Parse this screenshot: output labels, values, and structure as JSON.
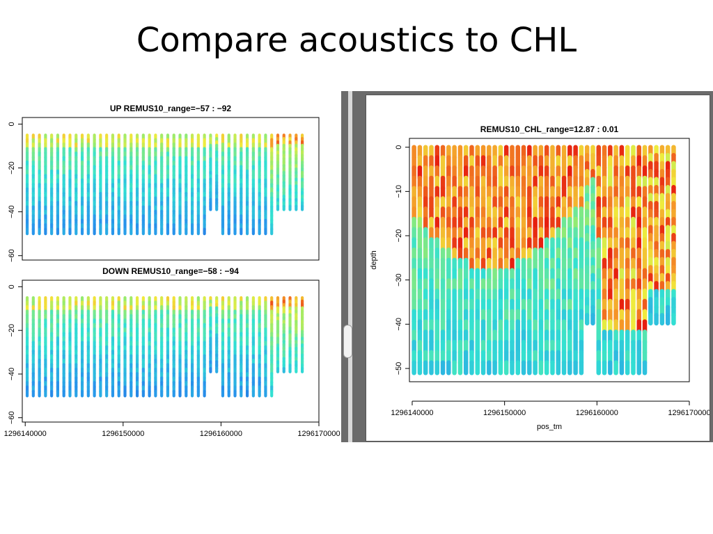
{
  "slide": {
    "title": "Compare acoustics to CHL"
  },
  "colors": {
    "low": "#1f4fd8",
    "mid": "#2fe0c8",
    "high": "#e82010",
    "frame": "#6b6b6b"
  },
  "chart_data": [
    {
      "type": "scatter",
      "title": "UP REMUS10_range=−57 : −92",
      "xlabel": "",
      "ylabel": "",
      "yticks": [
        "0",
        "−20",
        "−40",
        "−60"
      ],
      "ytick_values": [
        0,
        -20,
        -40,
        -60
      ],
      "ylim": [
        -62,
        3
      ],
      "x_shared_with_down_panel": true,
      "color_range": [
        -57,
        -92
      ],
      "dives": 46,
      "depth_min": -5,
      "depth_max": -50
    },
    {
      "type": "scatter",
      "title": "DOWN REMUS10_range=−58 : −94",
      "xlabel": "",
      "ylabel": "",
      "xticks": [
        "1296140000",
        "1296150000",
        "1296160000",
        "1296170000"
      ],
      "xtick_values": [
        1296140000,
        1296150000,
        1296160000,
        1296170000
      ],
      "xlim": [
        1296139700,
        1296170000
      ],
      "yticks": [
        "0",
        "−20",
        "−40",
        "−60"
      ],
      "ytick_values": [
        0,
        -20,
        -40,
        -60
      ],
      "ylim": [
        -62,
        3
      ],
      "color_range": [
        -58,
        -94
      ],
      "dives": 46,
      "depth_min": -5,
      "depth_max": -50
    },
    {
      "type": "scatter",
      "title": "REMUS10_CHL_range=12.87 : 0.01",
      "xlabel": "pos_tm",
      "ylabel": "depth",
      "xticks": [
        "1296140000",
        "1296150000",
        "1296160000",
        "1296170000"
      ],
      "xtick_values": [
        1296140000,
        1296150000,
        1296160000,
        1296170000
      ],
      "xlim": [
        1296139700,
        1296170000
      ],
      "yticks": [
        "0",
        "−10",
        "−20",
        "−30",
        "−40",
        "−50"
      ],
      "ytick_values": [
        0,
        -10,
        -20,
        -30,
        -40,
        -50
      ],
      "ylim": [
        -53,
        2
      ],
      "color_range": [
        12.87,
        0.01
      ],
      "dives": 46,
      "depth_min": 0,
      "depth_max": -51
    }
  ]
}
